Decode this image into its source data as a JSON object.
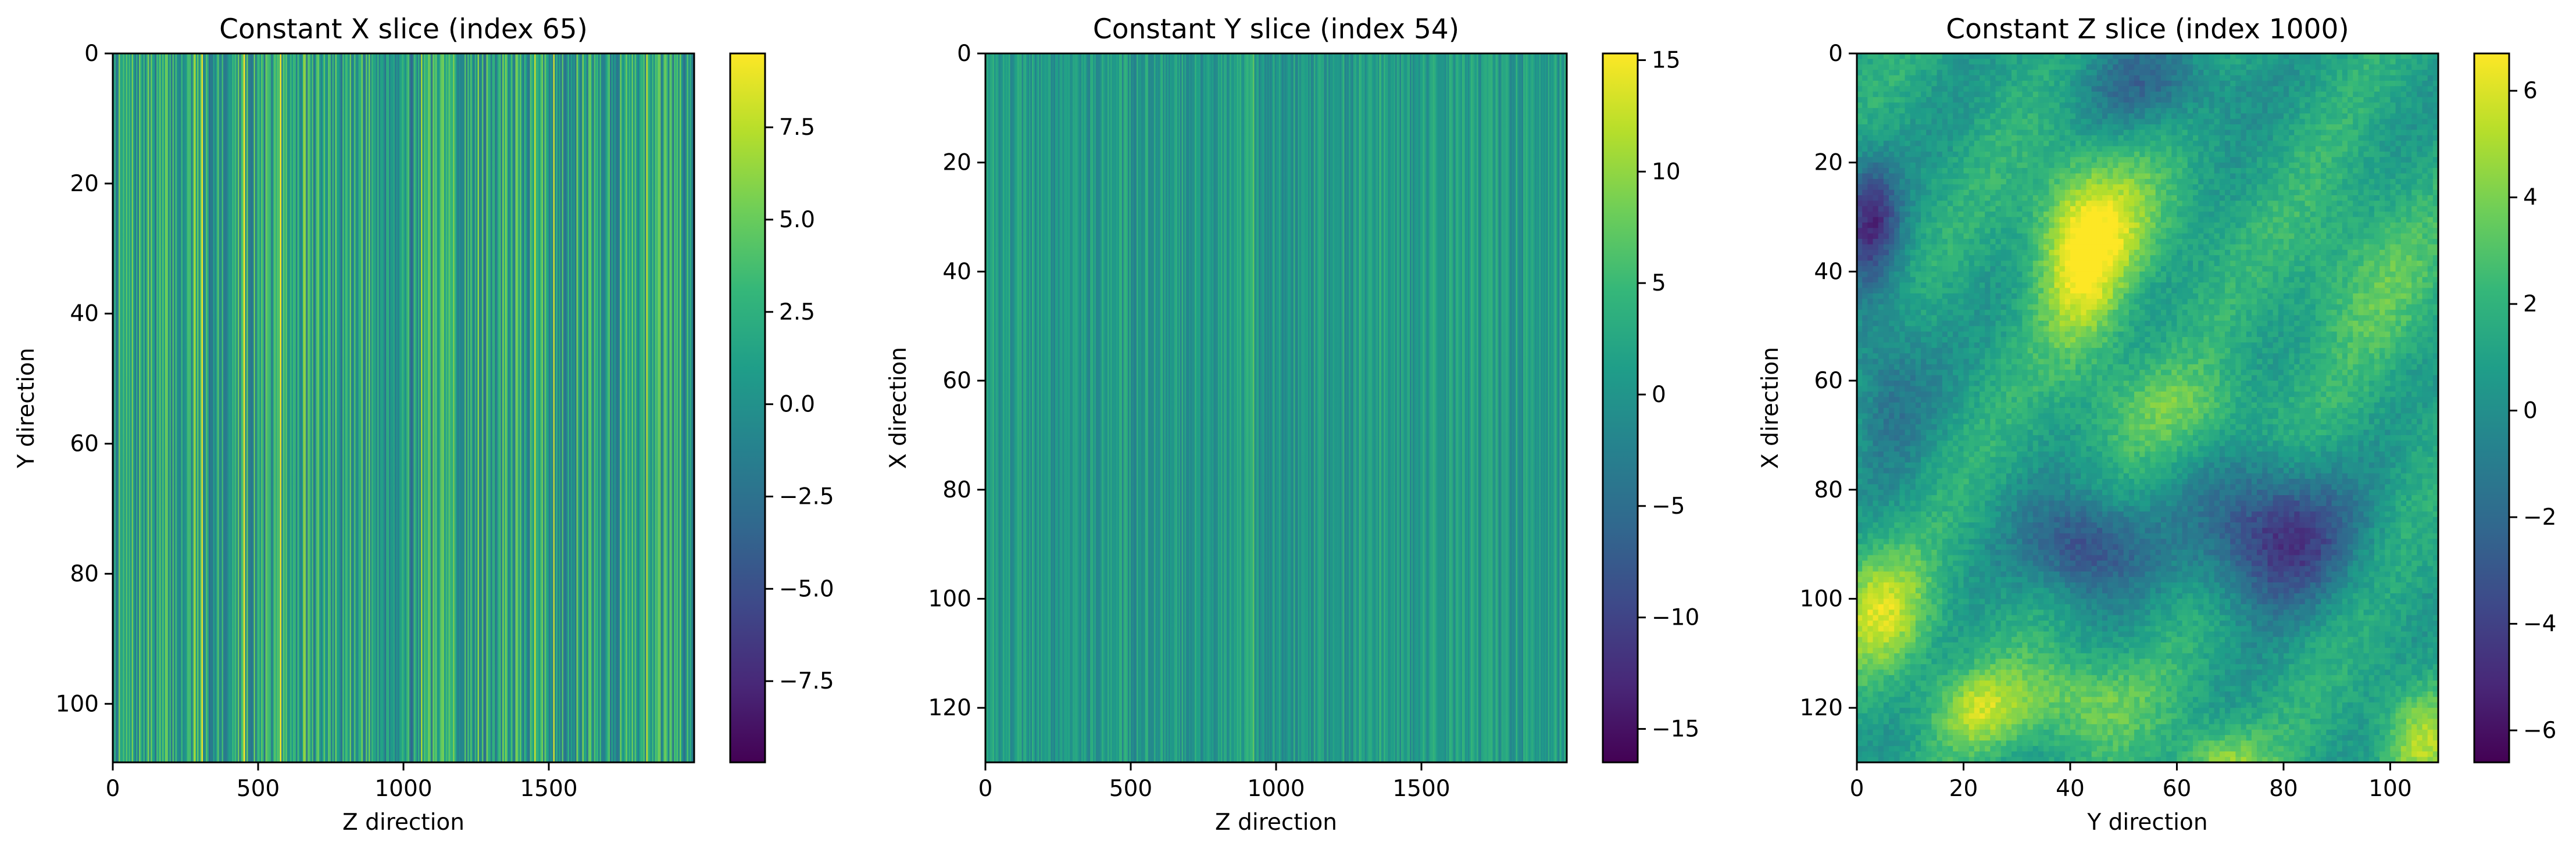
{
  "chart_data": [
    {
      "type": "heatmap",
      "title": "Constant X slice (index 65)",
      "xlabel": "Z direction",
      "ylabel": "Y direction",
      "xlim": [
        0,
        2000
      ],
      "ylim": [
        109,
        0
      ],
      "xticks": [
        {
          "value": 0,
          "label": "0"
        },
        {
          "value": 500,
          "label": "500"
        },
        {
          "value": 1000,
          "label": "1000"
        },
        {
          "value": 1500,
          "label": "1500"
        }
      ],
      "yticks": [
        {
          "value": 0,
          "label": "0"
        },
        {
          "value": 20,
          "label": "20"
        },
        {
          "value": 40,
          "label": "40"
        },
        {
          "value": 60,
          "label": "60"
        },
        {
          "value": 80,
          "label": "80"
        },
        {
          "value": 100,
          "label": "100"
        }
      ],
      "colorbar": {
        "min": -9.7,
        "max": 9.5,
        "colormap": "viridis",
        "ticks": [
          {
            "value": -7.5,
            "label": "−7.5"
          },
          {
            "value": -5.0,
            "label": "−5.0"
          },
          {
            "value": -2.5,
            "label": "−2.5"
          },
          {
            "value": 0.0,
            "label": "0.0"
          },
          {
            "value": 2.5,
            "label": "2.5"
          },
          {
            "value": 5.0,
            "label": "5.0"
          },
          {
            "value": 7.5,
            "label": "7.5"
          }
        ]
      },
      "field": {
        "pattern": "streaks",
        "nx": 400,
        "ny": 1,
        "seed": 7,
        "amp": 4.2,
        "center": 1.5
      }
    },
    {
      "type": "heatmap",
      "title": "Constant Y slice (index 54)",
      "xlabel": "Z direction",
      "ylabel": "X direction",
      "xlim": [
        0,
        2000
      ],
      "ylim": [
        130,
        0
      ],
      "xticks": [
        {
          "value": 0,
          "label": "0"
        },
        {
          "value": 500,
          "label": "500"
        },
        {
          "value": 1000,
          "label": "1000"
        },
        {
          "value": 1500,
          "label": "1500"
        }
      ],
      "yticks": [
        {
          "value": 0,
          "label": "0"
        },
        {
          "value": 20,
          "label": "20"
        },
        {
          "value": 40,
          "label": "40"
        },
        {
          "value": 60,
          "label": "60"
        },
        {
          "value": 80,
          "label": "80"
        },
        {
          "value": 100,
          "label": "100"
        },
        {
          "value": 120,
          "label": "120"
        }
      ],
      "colorbar": {
        "min": -16.5,
        "max": 15.3,
        "colormap": "viridis",
        "ticks": [
          {
            "value": -15,
            "label": "−15"
          },
          {
            "value": -10,
            "label": "−10"
          },
          {
            "value": -5,
            "label": "−5"
          },
          {
            "value": 0,
            "label": "0"
          },
          {
            "value": 5,
            "label": "5"
          },
          {
            "value": 10,
            "label": "10"
          },
          {
            "value": 15,
            "label": "15"
          }
        ]
      },
      "field": {
        "pattern": "streaks",
        "nx": 400,
        "ny": 1,
        "seed": 19,
        "amp": 3.5,
        "center": 1.0
      }
    },
    {
      "type": "heatmap",
      "title": "Constant Z slice (index 1000)",
      "xlabel": "Y direction",
      "ylabel": "X direction",
      "xlim": [
        0,
        109
      ],
      "ylim": [
        130,
        0
      ],
      "xticks": [
        {
          "value": 0,
          "label": "0"
        },
        {
          "value": 20,
          "label": "20"
        },
        {
          "value": 40,
          "label": "40"
        },
        {
          "value": 60,
          "label": "60"
        },
        {
          "value": 80,
          "label": "80"
        },
        {
          "value": 100,
          "label": "100"
        }
      ],
      "yticks": [
        {
          "value": 0,
          "label": "0"
        },
        {
          "value": 20,
          "label": "20"
        },
        {
          "value": 40,
          "label": "40"
        },
        {
          "value": 60,
          "label": "60"
        },
        {
          "value": 80,
          "label": "80"
        },
        {
          "value": 100,
          "label": "100"
        },
        {
          "value": 120,
          "label": "120"
        }
      ],
      "colorbar": {
        "min": -6.6,
        "max": 6.7,
        "colormap": "viridis",
        "ticks": [
          {
            "value": -6,
            "label": "−6"
          },
          {
            "value": -4,
            "label": "−4"
          },
          {
            "value": -2,
            "label": "−2"
          },
          {
            "value": 0,
            "label": "0"
          },
          {
            "value": 2,
            "label": "2"
          },
          {
            "value": 4,
            "label": "4"
          },
          {
            "value": 6,
            "label": "6"
          }
        ]
      },
      "field": {
        "pattern": "blobs",
        "nx": 109,
        "ny": 130,
        "seed": 3,
        "base": 1.2,
        "blobs": [
          {
            "x": 42,
            "y": 38,
            "sx": 6,
            "sy": 12,
            "v": 4.6
          },
          {
            "x": 48,
            "y": 30,
            "sx": 10,
            "sy": 8,
            "v": 2.4
          },
          {
            "x": 4,
            "y": 102,
            "sx": 7,
            "sy": 8,
            "v": 4.2
          },
          {
            "x": 22,
            "y": 120,
            "sx": 6,
            "sy": 5,
            "v": 3.2
          },
          {
            "x": 40,
            "y": 118,
            "sx": 10,
            "sy": 6,
            "v": 3.0
          },
          {
            "x": 68,
            "y": 130,
            "sx": 6,
            "sy": 5,
            "v": 3.5
          },
          {
            "x": 105,
            "y": 125,
            "sx": 5,
            "sy": 7,
            "v": 3.5
          },
          {
            "x": 60,
            "y": 65,
            "sx": 12,
            "sy": 6,
            "v": 2.0
          },
          {
            "x": 78,
            "y": 88,
            "sx": 10,
            "sy": 9,
            "v": -6.0
          },
          {
            "x": 42,
            "y": 90,
            "sx": 8,
            "sy": 7,
            "v": -5.0
          },
          {
            "x": 2,
            "y": 30,
            "sx": 4,
            "sy": 8,
            "v": -5.5
          },
          {
            "x": 55,
            "y": 5,
            "sx": 10,
            "sy": 6,
            "v": -3.0
          },
          {
            "x": 5,
            "y": 60,
            "sx": 6,
            "sy": 12,
            "v": -2.5
          },
          {
            "x": 95,
            "y": 40,
            "sx": 10,
            "sy": 12,
            "v": 1.8
          }
        ]
      }
    }
  ]
}
